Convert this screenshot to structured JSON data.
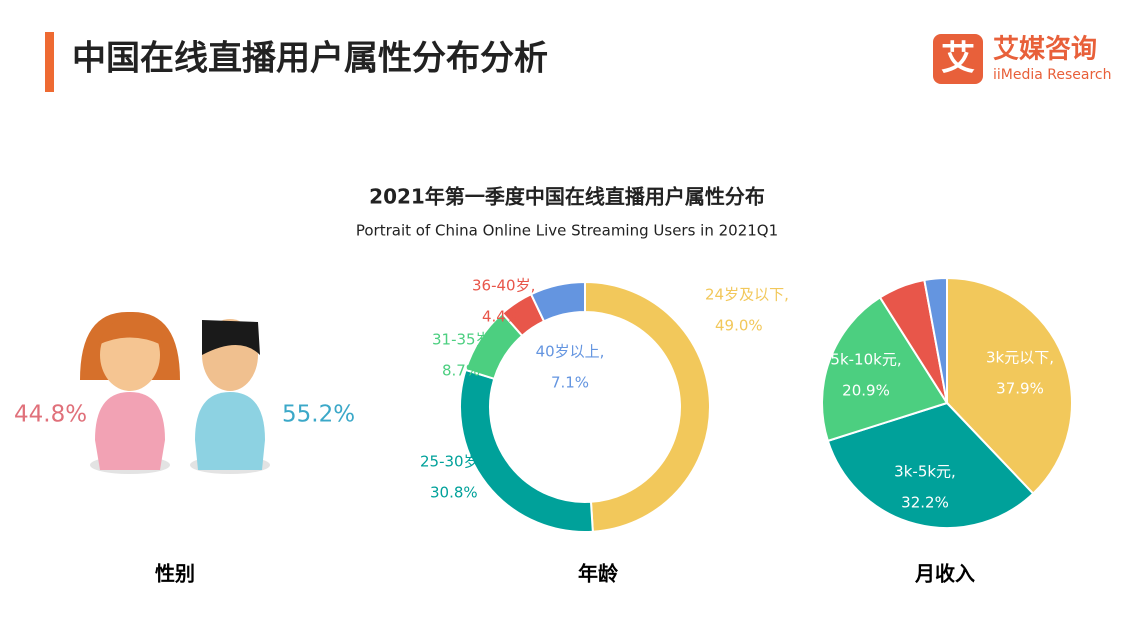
{
  "header": {
    "title": "中国在线直播用户属性分布分析",
    "subtitle": "2021年第一季度中国在线直播用户属性分布",
    "subtitle_en": "Portrait of China Online Live Streaming Users in 2021Q1"
  },
  "logo": {
    "icon": "艾",
    "name": "艾媒咨询",
    "name_en": "iiMedia Research"
  },
  "chart_data": [
    {
      "type": "figure",
      "title": "性别",
      "values": [
        44.8,
        55.2
      ],
      "value_labels": [
        "44.8%",
        "55.2%"
      ],
      "colors": [
        "#e0707a",
        "#3ba8c8"
      ]
    },
    {
      "type": "donut",
      "title": "年龄",
      "categories": [
        "24岁及以下,",
        "25-30岁,",
        "31-35岁,",
        "36-40岁,",
        "40岁以上,"
      ],
      "values": [
        49.0,
        30.8,
        8.7,
        4.4,
        7.1
      ],
      "value_labels": [
        "49.0%",
        "30.8%",
        "8.7%",
        "4.4%",
        "7.1%"
      ],
      "colors": [
        "#f2c85b",
        "#00a19a",
        "#4ccf80",
        "#e8564a",
        "#6495e0"
      ]
    },
    {
      "type": "pie",
      "title": "月收入",
      "categories": [
        "3k元以下,",
        "3k-5k元,",
        "5k-10k元,",
        null,
        null
      ],
      "values": [
        37.9,
        32.2,
        20.9,
        6.1,
        2.9
      ],
      "value_labels": [
        "37.9%",
        "32.2%",
        "20.9%",
        null,
        null
      ],
      "colors": [
        "#f2c85b",
        "#00a19a",
        "#4ccf80",
        "#e8564a",
        "#6495e0"
      ]
    }
  ]
}
